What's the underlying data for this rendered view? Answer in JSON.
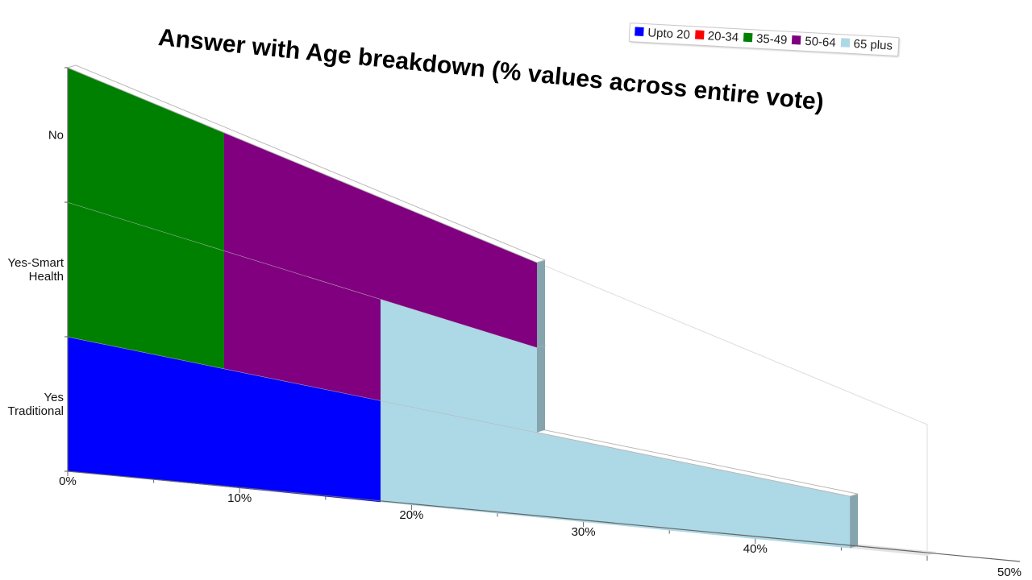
{
  "chart_data": {
    "type": "bar",
    "orientation": "horizontal",
    "stacked": true,
    "title": "Answer with Age breakdown (% values across entire vote)",
    "categories": [
      "Yes Traditional",
      "Yes-Smart Health",
      "No"
    ],
    "category_display": [
      [
        "Yes",
        "Traditional"
      ],
      [
        "Yes-Smart",
        "Health"
      ],
      [
        "No"
      ]
    ],
    "series": [
      {
        "name": "Upto 20",
        "color": "#0000ff",
        "values": [
          18.2,
          0,
          0
        ]
      },
      {
        "name": "20-34",
        "color": "#ff0000",
        "values": [
          0,
          0,
          0
        ]
      },
      {
        "name": "35-49",
        "color": "#008000",
        "values": [
          0,
          9.1,
          9.1
        ]
      },
      {
        "name": "50-64",
        "color": "#800080",
        "values": [
          0,
          9.1,
          18.2
        ]
      },
      {
        "name": "65 plus",
        "color": "#add8e6",
        "values": [
          27.3,
          9.1,
          0
        ]
      }
    ],
    "xlim": [
      0,
      50
    ],
    "x_ticks": [
      "0%",
      "10%",
      "20%",
      "30%",
      "40%",
      "50%"
    ],
    "legend_position": "top-right",
    "grid": false
  }
}
